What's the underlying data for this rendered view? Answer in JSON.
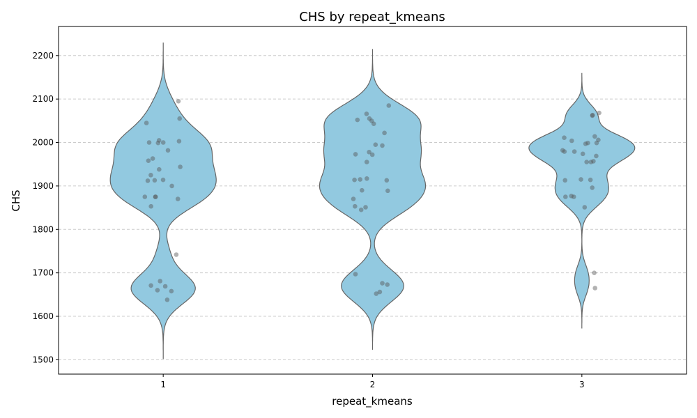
{
  "chart_data": {
    "type": "violin",
    "title": "CHS by repeat_kmeans",
    "xlabel": "repeat_kmeans",
    "ylabel": "CHS",
    "categories": [
      "1",
      "2",
      "3"
    ],
    "ylim": [
      1467,
      2267
    ],
    "yticks": [
      1500,
      1600,
      1700,
      1800,
      1900,
      2000,
      2100,
      2200
    ],
    "grid": "y-dashed",
    "colors": {
      "violin_fill": "#92c9e0",
      "violin_edge": "#666666",
      "point": "#555555",
      "grid": "#cccccc"
    },
    "series": [
      {
        "category": "1",
        "range": [
          1502,
          2230
        ],
        "points": [
          2095,
          2055,
          2045,
          2005,
          2003,
          2000,
          1999,
          2000,
          1982,
          1963,
          1958,
          1944,
          1938,
          1925,
          1914,
          1913,
          1912,
          1900,
          1875,
          1875,
          1875,
          1870,
          1853,
          1742,
          1681,
          1671,
          1669,
          1660,
          1658,
          1638
        ]
      },
      {
        "category": "2",
        "range": [
          1523,
          2215
        ],
        "points": [
          2085,
          2066,
          2055,
          2052,
          2050,
          2043,
          2022,
          1995,
          1993,
          1978,
          1973,
          1972,
          1955,
          1917,
          1915,
          1914,
          1913,
          1890,
          1889,
          1870,
          1853,
          1851,
          1845,
          1697,
          1676,
          1673,
          1656,
          1652
        ]
      },
      {
        "category": "3",
        "range": [
          1572,
          2160
        ],
        "points": [
          2068,
          2063,
          2062,
          2014,
          2011,
          2006,
          2004,
          1999,
          1999,
          1997,
          1982,
          1979,
          1979,
          1974,
          1969,
          1957,
          1955,
          1955,
          1915,
          1914,
          1913,
          1896,
          1877,
          1875,
          1875,
          1851,
          1700,
          1665
        ]
      }
    ]
  }
}
